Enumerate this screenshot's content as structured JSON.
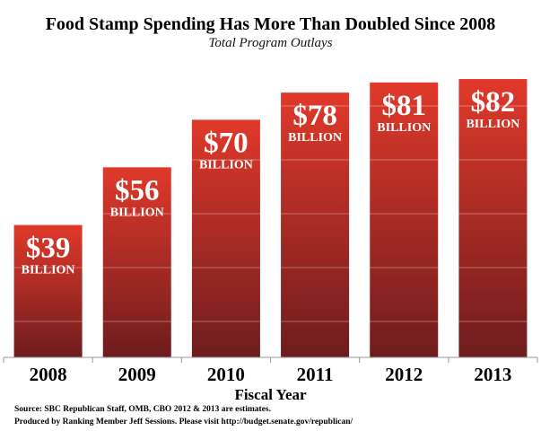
{
  "chart_data": {
    "type": "bar",
    "title": "Food Stamp Spending Has More Than Doubled Since 2008",
    "subtitle": "Total Program Outlays",
    "xlabel": "Fiscal Year",
    "ylabel": "",
    "categories": [
      "2008",
      "2009",
      "2010",
      "2011",
      "2012",
      "2013"
    ],
    "values": [
      39,
      56,
      70,
      78,
      81,
      82
    ],
    "data_labels": [
      "$39",
      "$56",
      "$70",
      "$78",
      "$81",
      "$82"
    ],
    "unit_label": "BILLION",
    "ylim": [
      0,
      105
    ],
    "grid": true,
    "legend": "none",
    "bar_color_top": "#e0392a",
    "bar_color_bottom": "#6e1c1e"
  },
  "footer": {
    "source": "Source: SBC Republican Staff, OMB, CBO 2012 & 2013 are estimates.",
    "produced": "Produced by Ranking Member Jeff Sessions.  Please visit http://budget.senate.gov/republican/"
  }
}
